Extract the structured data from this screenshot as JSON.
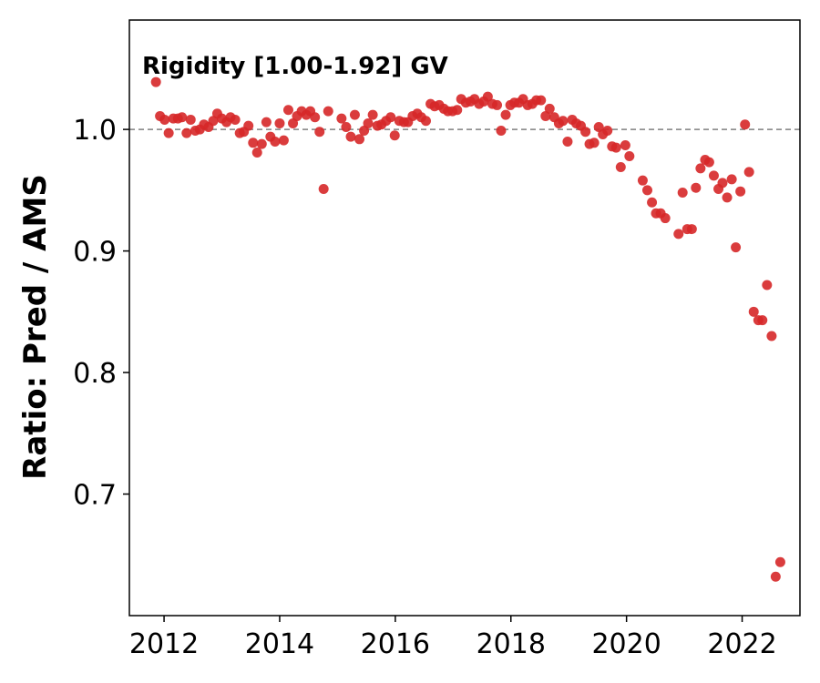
{
  "chart_data": {
    "type": "scatter",
    "annotation": "Rigidity [1.00-1.92] GV",
    "xlabel": "",
    "ylabel": "Ratio: Pred / AMS",
    "xlim": [
      2011.4,
      2023.0
    ],
    "ylim": [
      0.6,
      1.09
    ],
    "xticks": [
      2012,
      2014,
      2016,
      2018,
      2020,
      2022
    ],
    "yticks": [
      0.7,
      0.8,
      0.9,
      1.0
    ],
    "xtick_labels": [
      "2012",
      "2014",
      "2016",
      "2018",
      "2020",
      "2022"
    ],
    "ytick_labels": [
      "0.7",
      "0.8",
      "0.9",
      "1.0"
    ],
    "reference_line": 1.0,
    "grid": false,
    "series": [
      {
        "color": "#d62728",
        "points": [
          [
            2011.86,
            1.039
          ],
          [
            2011.93,
            1.011
          ],
          [
            2012.01,
            1.008
          ],
          [
            2012.08,
            0.997
          ],
          [
            2012.16,
            1.009
          ],
          [
            2012.24,
            1.009
          ],
          [
            2012.31,
            1.01
          ],
          [
            2012.39,
            0.997
          ],
          [
            2012.46,
            1.008
          ],
          [
            2012.54,
            0.999
          ],
          [
            2012.62,
            1.0
          ],
          [
            2012.69,
            1.004
          ],
          [
            2012.77,
            1.002
          ],
          [
            2012.85,
            1.007
          ],
          [
            2012.92,
            1.013
          ],
          [
            2013.0,
            1.009
          ],
          [
            2013.08,
            1.006
          ],
          [
            2013.15,
            1.01
          ],
          [
            2013.23,
            1.008
          ],
          [
            2013.31,
            0.997
          ],
          [
            2013.38,
            0.998
          ],
          [
            2013.46,
            1.003
          ],
          [
            2013.54,
            0.989
          ],
          [
            2013.61,
            0.981
          ],
          [
            2013.69,
            0.988
          ],
          [
            2013.77,
            1.006
          ],
          [
            2013.84,
            0.994
          ],
          [
            2013.92,
            0.99
          ],
          [
            2014.0,
            1.005
          ],
          [
            2014.07,
            0.991
          ],
          [
            2014.15,
            1.016
          ],
          [
            2014.23,
            1.005
          ],
          [
            2014.3,
            1.011
          ],
          [
            2014.38,
            1.015
          ],
          [
            2014.46,
            1.012
          ],
          [
            2014.53,
            1.015
          ],
          [
            2014.61,
            1.01
          ],
          [
            2014.69,
            0.998
          ],
          [
            2014.76,
            0.951
          ],
          [
            2014.84,
            1.015
          ],
          [
            2015.07,
            1.009
          ],
          [
            2015.15,
            1.002
          ],
          [
            2015.23,
            0.994
          ],
          [
            2015.3,
            1.012
          ],
          [
            2015.38,
            0.992
          ],
          [
            2015.46,
            0.999
          ],
          [
            2015.53,
            1.005
          ],
          [
            2015.61,
            1.012
          ],
          [
            2015.69,
            1.003
          ],
          [
            2015.76,
            1.004
          ],
          [
            2015.84,
            1.007
          ],
          [
            2015.92,
            1.01
          ],
          [
            2015.99,
            0.995
          ],
          [
            2016.07,
            1.007
          ],
          [
            2016.15,
            1.006
          ],
          [
            2016.22,
            1.006
          ],
          [
            2016.3,
            1.011
          ],
          [
            2016.38,
            1.013
          ],
          [
            2016.45,
            1.01
          ],
          [
            2016.53,
            1.007
          ],
          [
            2016.61,
            1.021
          ],
          [
            2016.68,
            1.019
          ],
          [
            2016.76,
            1.02
          ],
          [
            2016.84,
            1.017
          ],
          [
            2016.91,
            1.015
          ],
          [
            2016.99,
            1.015
          ],
          [
            2017.07,
            1.016
          ],
          [
            2017.14,
            1.025
          ],
          [
            2017.22,
            1.022
          ],
          [
            2017.3,
            1.023
          ],
          [
            2017.37,
            1.025
          ],
          [
            2017.45,
            1.021
          ],
          [
            2017.53,
            1.023
          ],
          [
            2017.6,
            1.027
          ],
          [
            2017.68,
            1.021
          ],
          [
            2017.76,
            1.02
          ],
          [
            2017.83,
            0.999
          ],
          [
            2017.91,
            1.012
          ],
          [
            2017.99,
            1.02
          ],
          [
            2018.06,
            1.022
          ],
          [
            2018.14,
            1.022
          ],
          [
            2018.21,
            1.025
          ],
          [
            2018.29,
            1.02
          ],
          [
            2018.37,
            1.021
          ],
          [
            2018.44,
            1.024
          ],
          [
            2018.52,
            1.024
          ],
          [
            2018.6,
            1.011
          ],
          [
            2018.67,
            1.017
          ],
          [
            2018.75,
            1.01
          ],
          [
            2018.83,
            1.005
          ],
          [
            2018.9,
            1.007
          ],
          [
            2018.98,
            0.99
          ],
          [
            2019.06,
            1.008
          ],
          [
            2019.13,
            1.005
          ],
          [
            2019.21,
            1.003
          ],
          [
            2019.29,
            0.998
          ],
          [
            2019.36,
            0.988
          ],
          [
            2019.44,
            0.989
          ],
          [
            2019.52,
            1.002
          ],
          [
            2019.59,
            0.996
          ],
          [
            2019.67,
            0.999
          ],
          [
            2019.75,
            0.986
          ],
          [
            2019.82,
            0.985
          ],
          [
            2019.9,
            0.969
          ],
          [
            2019.98,
            0.987
          ],
          [
            2020.05,
            0.978
          ],
          [
            2020.28,
            0.958
          ],
          [
            2020.36,
            0.95
          ],
          [
            2020.44,
            0.94
          ],
          [
            2020.51,
            0.931
          ],
          [
            2020.59,
            0.931
          ],
          [
            2020.67,
            0.927
          ],
          [
            2020.9,
            0.914
          ],
          [
            2020.97,
            0.948
          ],
          [
            2021.05,
            0.918
          ],
          [
            2021.13,
            0.918
          ],
          [
            2021.2,
            0.952
          ],
          [
            2021.28,
            0.968
          ],
          [
            2021.36,
            0.975
          ],
          [
            2021.43,
            0.973
          ],
          [
            2021.51,
            0.962
          ],
          [
            2021.59,
            0.951
          ],
          [
            2021.66,
            0.956
          ],
          [
            2021.74,
            0.944
          ],
          [
            2021.82,
            0.959
          ],
          [
            2021.89,
            0.903
          ],
          [
            2021.97,
            0.949
          ],
          [
            2022.05,
            1.004
          ],
          [
            2022.12,
            0.965
          ],
          [
            2022.2,
            0.85
          ],
          [
            2022.28,
            0.843
          ],
          [
            2022.35,
            0.843
          ],
          [
            2022.43,
            0.872
          ],
          [
            2022.51,
            0.83
          ],
          [
            2022.58,
            0.632
          ],
          [
            2022.66,
            0.644
          ]
        ]
      }
    ]
  }
}
